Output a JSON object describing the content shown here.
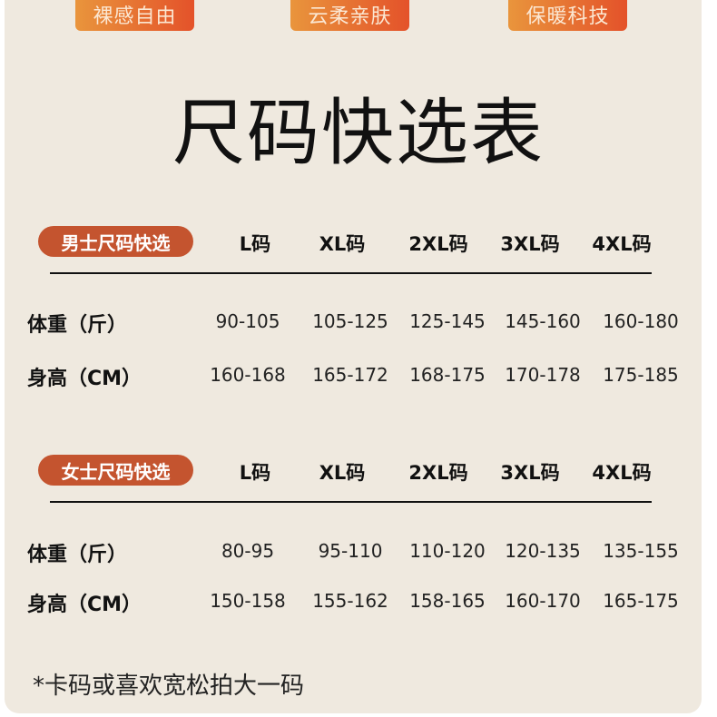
{
  "feature_tags": [
    "裸感自由",
    "云柔亲肤",
    "保暖科技"
  ],
  "title": "尺码快选表",
  "sizes": [
    "L码",
    "XL码",
    "2XL码",
    "3XL码",
    "4XL码"
  ],
  "men": {
    "label": "男士尺码快选",
    "rows": [
      {
        "label": "体重（斤）",
        "values": [
          "90-105",
          "105-125",
          "125-145",
          "145-160",
          "160-180"
        ]
      },
      {
        "label": "身高（CM）",
        "values": [
          "160-168",
          "165-172",
          "168-175",
          "170-178",
          "175-185"
        ]
      }
    ]
  },
  "women": {
    "label": "女士尺码快选",
    "rows": [
      {
        "label": "体重（斤）",
        "values": [
          "80-95",
          "95-110",
          "110-120",
          "120-135",
          "135-155"
        ]
      },
      {
        "label": "身高（CM）",
        "values": [
          "150-158",
          "155-162",
          "158-165",
          "160-170",
          "165-175"
        ]
      }
    ]
  },
  "note": "*卡码或喜欢宽松拍大一码",
  "colors": {
    "background": "#efe9df",
    "tag_gradient_start": "#e9953c",
    "tag_gradient_end": "#e4522a",
    "section_badge": "#c4542f"
  }
}
